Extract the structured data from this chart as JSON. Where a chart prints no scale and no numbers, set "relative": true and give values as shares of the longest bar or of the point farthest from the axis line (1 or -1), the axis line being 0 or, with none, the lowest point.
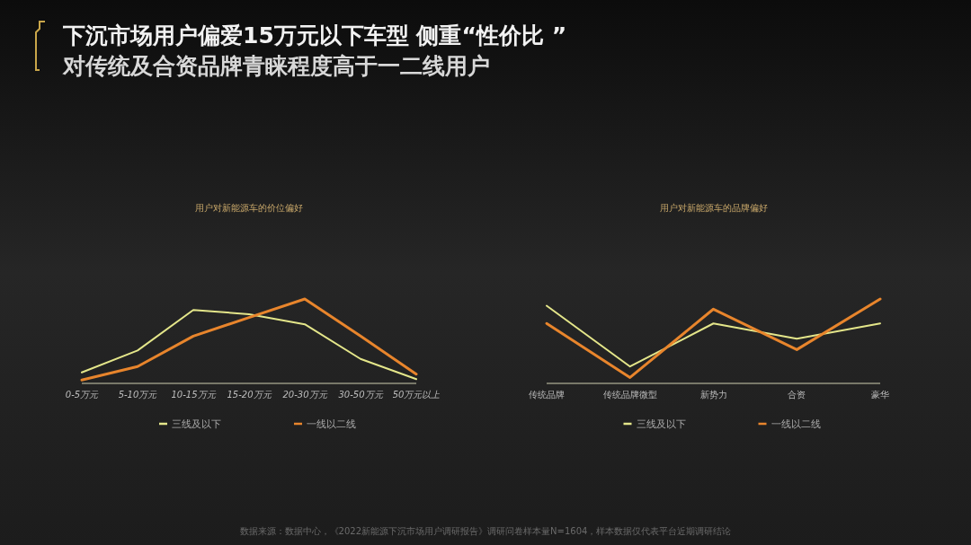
{
  "chart_data": [
    {
      "type": "other",
      "title": "下沉市场用户偏爱15万元以下车型 侧重“性价比 ”",
      "subtitle": "对传统及合资品牌青睐程度高于一二线用户",
      "annotations": [
        "数据来源：数据中心，《2022新能源下沉市场用户调研报告》调研问卷样本量N=1604，样本数据仅代表平台近期调研结论"
      ]
    },
    {
      "type": "line",
      "title": "用户对新能源车的价位偏好",
      "relative": true,
      "legend": "bottom",
      "categories": [
        "0-5万元",
        "5-10万元",
        "10-15万元",
        "15-20万元",
        "20-30万元",
        "30-50万元",
        "50万元以上"
      ],
      "series": [
        {
          "name": "三线及以下",
          "color": "#e4e68a",
          "values": [
            0.13,
            0.39,
            0.87,
            0.82,
            0.7,
            0.29,
            0.05
          ]
        },
        {
          "name": "一线以二线",
          "color": "#e8852c",
          "values": [
            0.04,
            0.2,
            0.56,
            0.78,
            1,
            0.56,
            0.11
          ]
        }
      ]
    },
    {
      "type": "line",
      "title": "用户对新能源车的品牌偏好",
      "relative": true,
      "legend": "bottom",
      "categories": [
        "传统品牌",
        "传统品牌微型",
        "新势力",
        "合资",
        "豪华"
      ],
      "series": [
        {
          "name": "三线及以下",
          "color": "#e4e68a",
          "values": [
            0.92,
            0.2,
            0.71,
            0.53,
            0.71
          ]
        },
        {
          "name": "一线以二线",
          "color": "#e8852c",
          "values": [
            0.71,
            0.07,
            0.88,
            0.4,
            1
          ]
        }
      ]
    }
  ]
}
